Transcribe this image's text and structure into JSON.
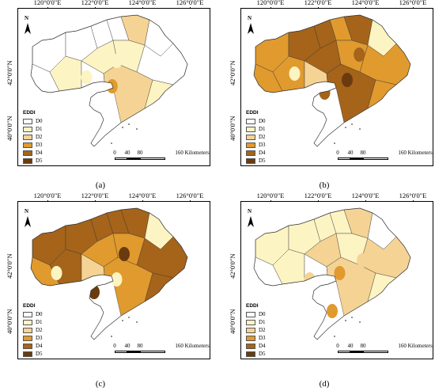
{
  "panels": [
    {
      "id": "a",
      "caption": "(a)",
      "regions": [
        0,
        0,
        0,
        1,
        0,
        1,
        0,
        2,
        0,
        0,
        1,
        0,
        2,
        1
      ],
      "blobs": [
        [
          0.52,
          0.55,
          3
        ],
        [
          0.55,
          0.35,
          1
        ],
        [
          0.35,
          0.48,
          1
        ],
        [
          0.6,
          0.5,
          2
        ]
      ]
    },
    {
      "id": "b",
      "caption": "(b)",
      "regions": [
        3,
        4,
        3,
        3,
        4,
        4,
        3,
        4,
        2,
        1,
        3,
        3,
        4,
        3
      ],
      "blobs": [
        [
          0.6,
          0.5,
          5
        ],
        [
          0.68,
          0.3,
          4
        ],
        [
          0.45,
          0.6,
          4
        ],
        [
          0.25,
          0.45,
          1
        ]
      ]
    },
    {
      "id": "c",
      "caption": "(c)",
      "regions": [
        4,
        4,
        3,
        4,
        4,
        3,
        4,
        4,
        2,
        1,
        3,
        4,
        3,
        4
      ],
      "blobs": [
        [
          0.6,
          0.35,
          5
        ],
        [
          0.4,
          0.65,
          5
        ],
        [
          0.15,
          0.5,
          1
        ],
        [
          0.55,
          0.55,
          1
        ]
      ]
    },
    {
      "id": "d",
      "caption": "(d)",
      "regions": [
        1,
        1,
        0,
        1,
        1,
        2,
        1,
        2,
        0,
        0,
        1,
        2,
        2,
        1
      ],
      "blobs": [
        [
          0.55,
          0.5,
          3
        ],
        [
          0.35,
          0.55,
          2
        ],
        [
          0.7,
          0.4,
          2
        ],
        [
          0.5,
          0.8,
          3
        ]
      ]
    }
  ],
  "axes": {
    "lon_labels": [
      "120°0'0\"E",
      "122°0'0\"E",
      "124°0'0\"E",
      "126°0'0\"E"
    ],
    "lat_labels": [
      "42°0'0\"N",
      "40°0'0\"N"
    ]
  },
  "north_label": "N",
  "legend": {
    "title": "EDDI",
    "items": [
      {
        "label": "D0",
        "color": "#ffffff"
      },
      {
        "label": "D1",
        "color": "#fdf4c3"
      },
      {
        "label": "D2",
        "color": "#f5d394"
      },
      {
        "label": "D3",
        "color": "#e09a2e"
      },
      {
        "label": "D4",
        "color": "#a5641a"
      },
      {
        "label": "D5",
        "color": "#6a3b0e"
      }
    ]
  },
  "scale": {
    "labels": [
      "0",
      "40",
      "80",
      "160 Kilometers"
    ]
  }
}
